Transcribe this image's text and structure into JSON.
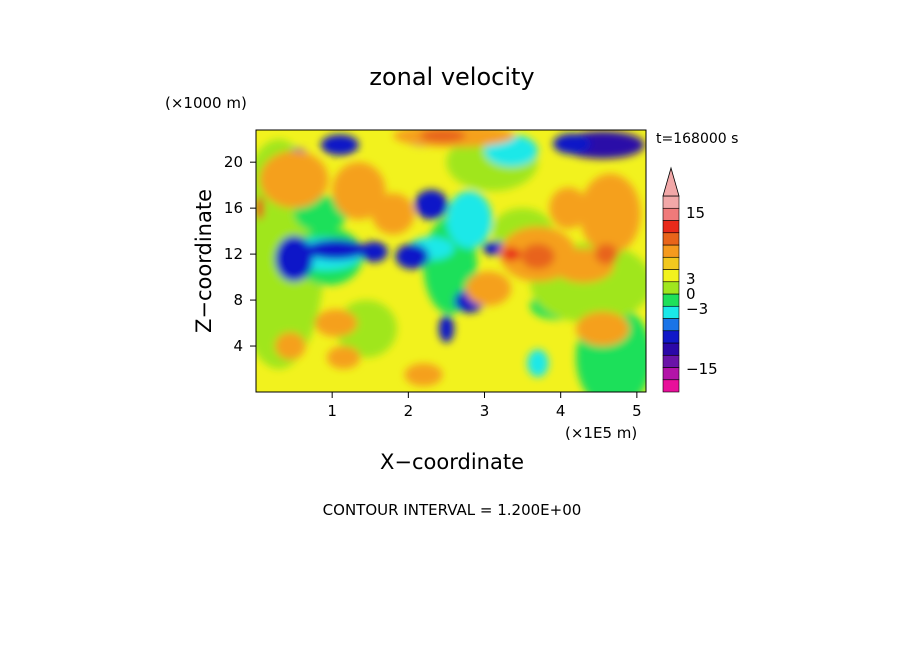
{
  "chart_data": {
    "type": "heatmap",
    "title": "zonal velocity",
    "time_label": "t=168000 s",
    "xlabel": "X−coordinate",
    "ylabel": "Z−coordinate",
    "x_unit": "(×1E5 m)",
    "y_unit": "(×1000 m)",
    "x_ticks": [
      "1",
      "2",
      "3",
      "4",
      "5"
    ],
    "x_tick_values": [
      1,
      2,
      3,
      4,
      5
    ],
    "y_ticks": [
      "4",
      "8",
      "12",
      "16",
      "20"
    ],
    "y_tick_values": [
      4,
      8,
      12,
      16,
      20
    ],
    "xlim": [
      0,
      5.12
    ],
    "ylim": [
      0,
      22.8
    ],
    "footer": "CONTOUR INTERVAL = 1.200E+00",
    "colorbar": {
      "levels": [
        {
          "color": "#e8109a"
        },
        {
          "color": "#b313a8"
        },
        {
          "color": "#6a14a8"
        },
        {
          "color": "#2b08a8"
        },
        {
          "color": "#1018c8"
        },
        {
          "color": "#1a74e8"
        },
        {
          "color": "#1ae8e8"
        },
        {
          "color": "#1ee05a"
        },
        {
          "color": "#a0e61e"
        },
        {
          "color": "#f2f21e"
        },
        {
          "color": "#f2c81e"
        },
        {
          "color": "#f59a1e"
        },
        {
          "color": "#e8641a"
        },
        {
          "color": "#e82a1a"
        },
        {
          "color": "#f07a7a"
        },
        {
          "color": "#f2a8a8"
        }
      ],
      "tick_labels": [
        "15",
        "3",
        "0",
        "−3",
        "−15"
      ]
    },
    "field_colors": {
      "yellow": "#f2f21e",
      "light_green": "#a0e61e",
      "green": "#1ee05a",
      "cyan": "#1ae8e8",
      "blue": "#1018c8",
      "dark_blue": "#2b08a8",
      "orange": "#f5a01e",
      "dark_orange": "#e8641a",
      "red": "#e82a1a"
    }
  }
}
